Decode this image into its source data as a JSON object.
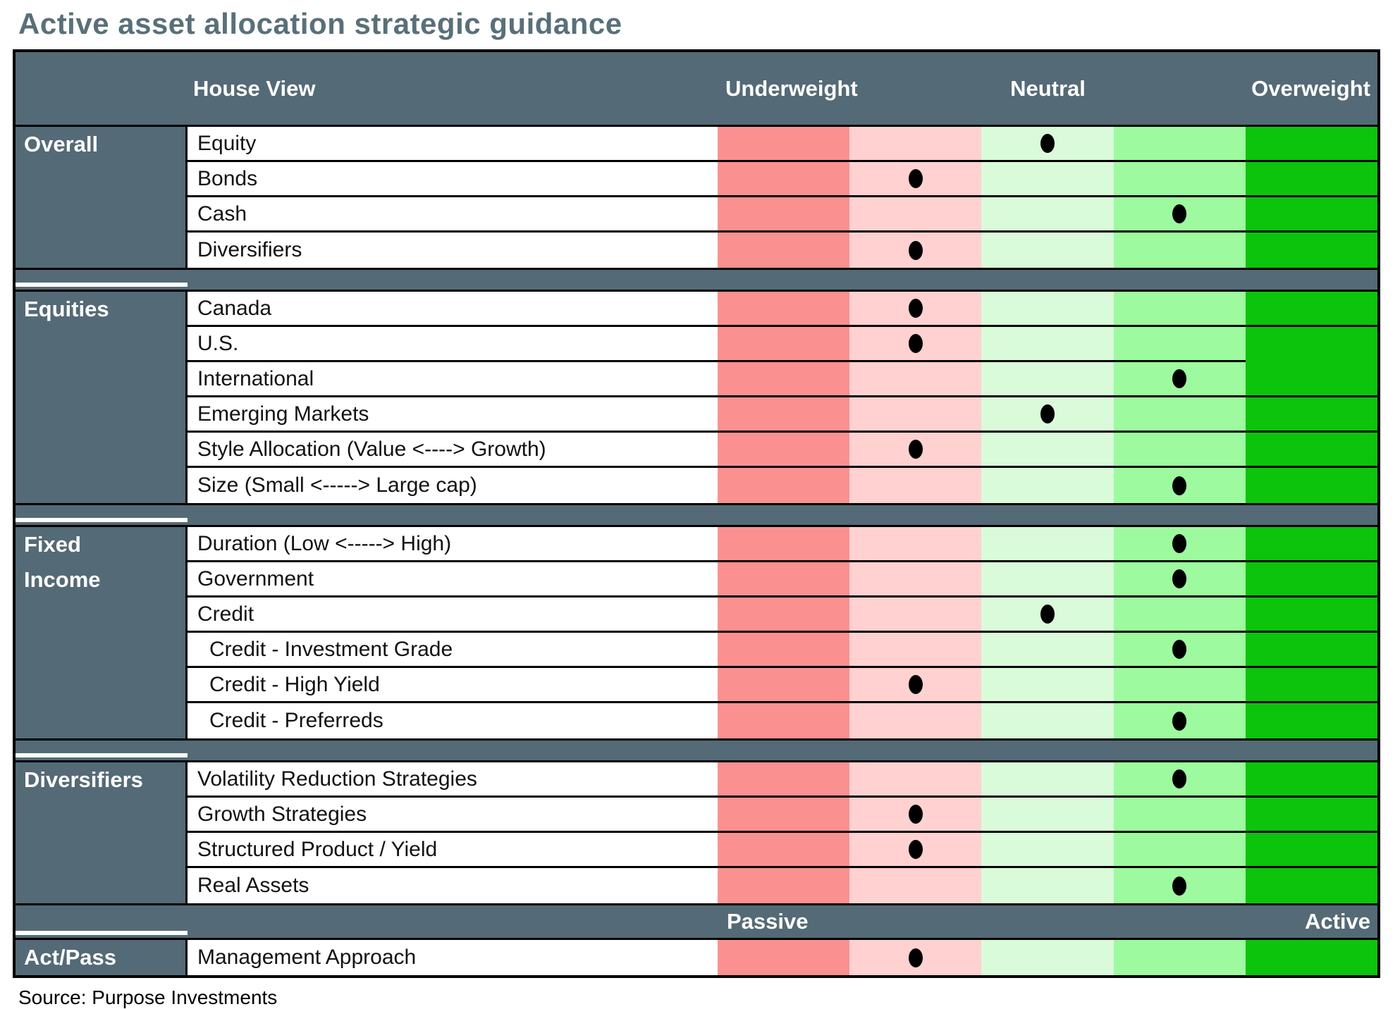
{
  "title": "Active asset allocation strategic guidance",
  "source": "Source: Purpose Investments",
  "header": {
    "house_view": "House View",
    "underweight": "Underweight",
    "neutral": "Neutral",
    "overweight": "Overweight"
  },
  "footer_band": {
    "passive": "Passive",
    "active": "Active"
  },
  "colors": {
    "slate": "#546a76",
    "title_text": "#587079",
    "band_strong_underweight": "#fb9090",
    "band_underweight": "#ffd1d1",
    "band_neutral": "#dafbda",
    "band_overweight": "#9efa9e",
    "band_strong_overweight": "#0bc40b",
    "dot": "#000000"
  },
  "chart_data": {
    "type": "table",
    "title": "Active asset allocation strategic guidance",
    "column_headers": [
      "Underweight",
      "Neutral",
      "Overweight"
    ],
    "bands_per_row": 5,
    "position_note": "position is the band (1-5) holding the dot, 1=deep underweight, 3=neutral, 5=deep overweight",
    "sections": [
      {
        "label": "Overall",
        "divider_after": "plain",
        "rows": [
          {
            "label": "Equity",
            "position": 3
          },
          {
            "label": "Bonds",
            "position": 2
          },
          {
            "label": "Cash",
            "position": 4
          },
          {
            "label": "Diversifiers",
            "position": 2
          }
        ]
      },
      {
        "label": "Equities",
        "divider_after": "plain",
        "rows": [
          {
            "label": "Canada",
            "position": 2
          },
          {
            "label": "U.S.",
            "position": 2,
            "band5_merge": true
          },
          {
            "label": "International",
            "position": 4
          },
          {
            "label": "Emerging Markets",
            "position": 3
          },
          {
            "label": "Style Allocation (Value <----> Growth)",
            "position": 2
          },
          {
            "label": "Size (Small <----->  Large cap)",
            "position": 4
          }
        ]
      },
      {
        "label": "Fixed Income",
        "label_lines": [
          "Fixed",
          "Income"
        ],
        "divider_after": "plain",
        "rows": [
          {
            "label": "Duration (Low <-----> High)",
            "position": 4
          },
          {
            "label": "Government",
            "position": 4
          },
          {
            "label": "Credit",
            "position": 3
          },
          {
            "label": "Credit - Investment Grade",
            "position": 4,
            "indent": true
          },
          {
            "label": "Credit - High Yield",
            "position": 2,
            "indent": true
          },
          {
            "label": "Credit - Preferreds",
            "position": 4,
            "indent": true
          }
        ]
      },
      {
        "label": "Diversifiers",
        "divider_after": "passive",
        "rows": [
          {
            "label": "Volatility Reduction Strategies",
            "position": 4
          },
          {
            "label": "Growth Strategies",
            "position": 2
          },
          {
            "label": "Structured Product / Yield",
            "position": 2
          },
          {
            "label": "Real Assets",
            "position": 4
          }
        ]
      },
      {
        "label": "Act/Pass",
        "divider_after": "none",
        "rows": [
          {
            "label": "Management Approach",
            "position": 2
          }
        ]
      }
    ]
  }
}
